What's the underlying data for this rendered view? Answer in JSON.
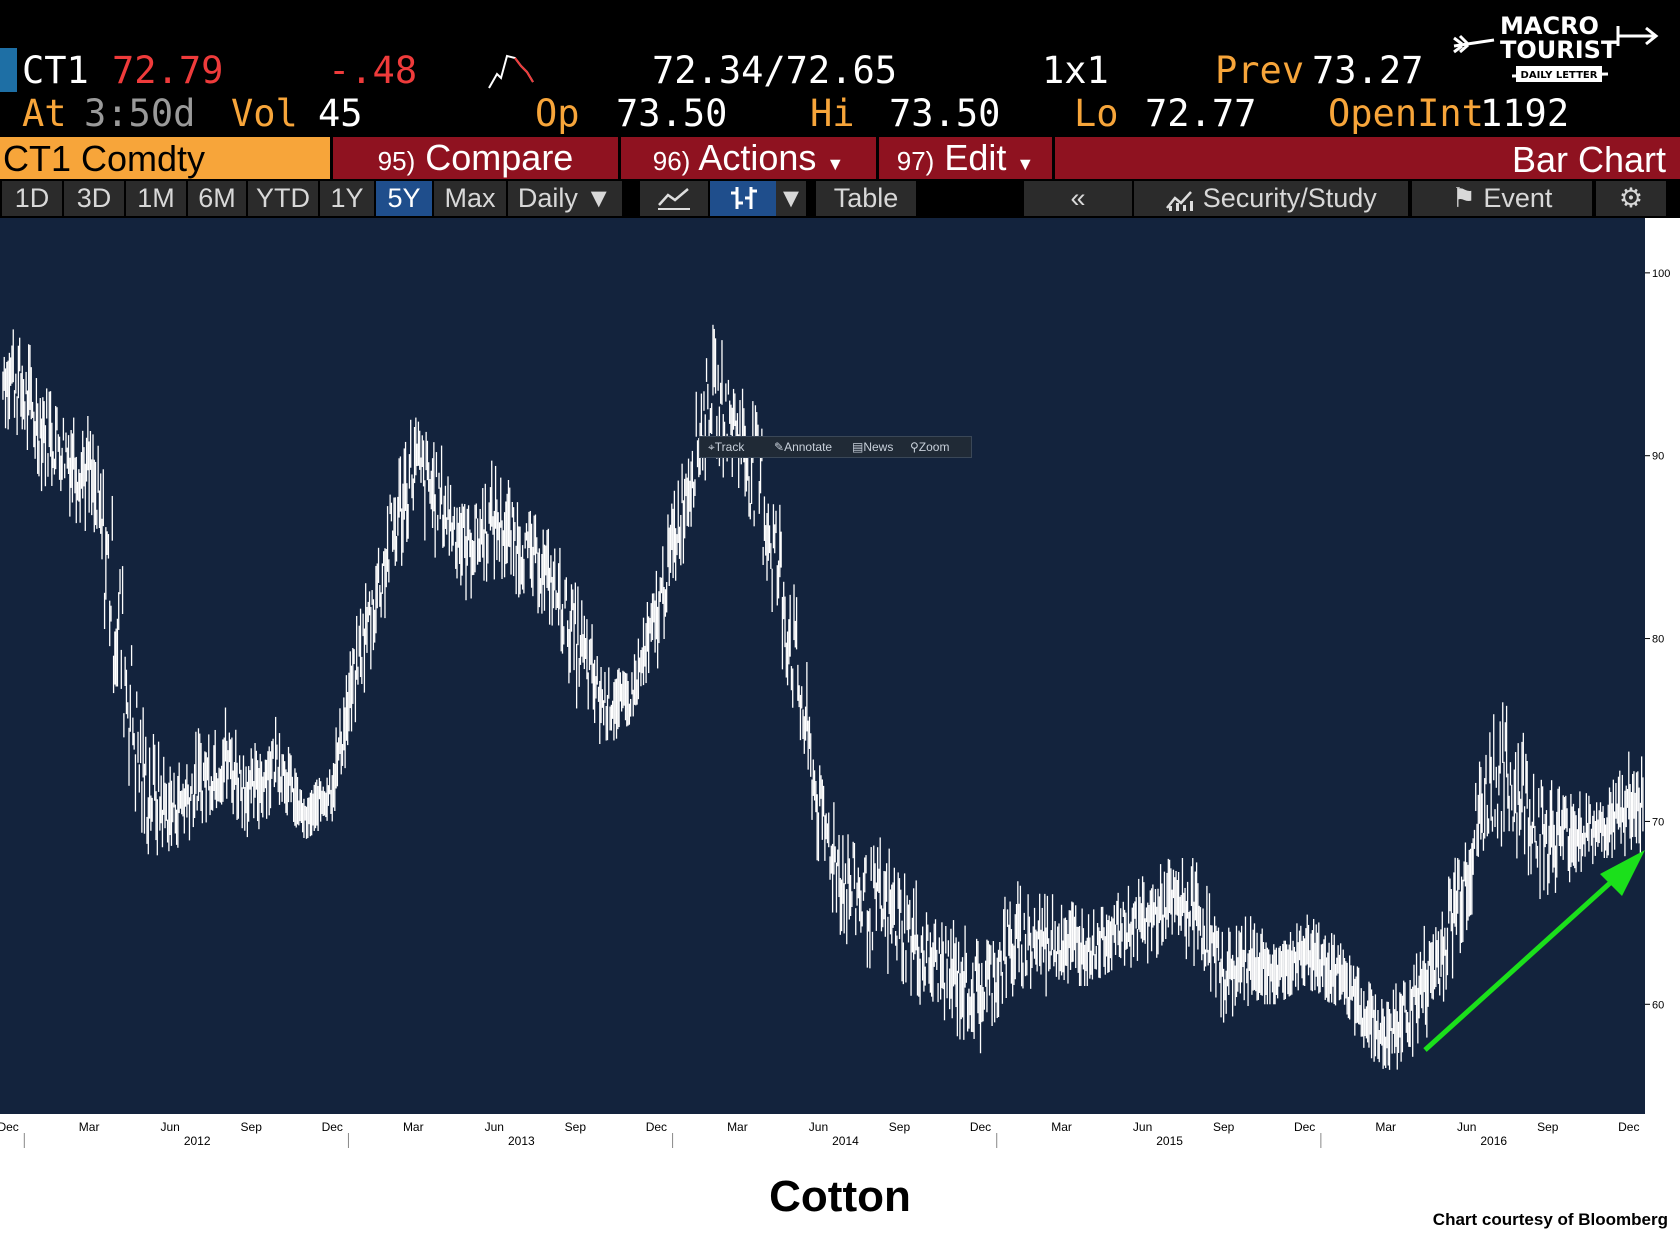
{
  "quote": {
    "ticker": "CT1",
    "last": "72.79",
    "change": "-.48",
    "bid_ask": "72.34/72.65",
    "size": "1x1",
    "prev_label": "Prev",
    "prev_value": "73.27",
    "at_label": "At",
    "time": "3:50d",
    "vol_label": "Vol",
    "vol_value": "45",
    "op_label": "Op",
    "op_value": "73.50",
    "hi_label": "Hi",
    "hi_value": "73.50",
    "lo_label": "Lo",
    "lo_value": "72.77",
    "openint_label": "OpenInt",
    "openint_value": "1192"
  },
  "logo": {
    "line1": "MACRO",
    "line2": "TOURIST",
    "line3": "DAILY LETTER"
  },
  "actionbar": {
    "security": "CT1 Comdty",
    "compare_num": "95)",
    "compare": "Compare",
    "actions_num": "96)",
    "actions": "Actions",
    "edit_num": "97)",
    "edit": "Edit",
    "chart_type": "Bar Chart"
  },
  "toolbar": {
    "ranges": [
      "1D",
      "3D",
      "1M",
      "6M",
      "YTD",
      "1Y",
      "5Y",
      "Max"
    ],
    "selected_range": "5Y",
    "frequency": "Daily",
    "table": "Table",
    "security_study": "Security/Study",
    "event": "Event"
  },
  "mini_toolbar": {
    "track": "Track",
    "annotate": "Annotate",
    "news": "News",
    "zoom": "Zoom"
  },
  "colors": {
    "background": "#13233d",
    "bars": "#ffffff",
    "arrow": "#1be01b",
    "amber": "#f7a53a",
    "red": "#ef3b3b"
  },
  "chart_data": {
    "type": "bar",
    "title": "Cotton",
    "credit": "Chart courtesy of Bloomberg",
    "ylim": [
      54,
      103
    ],
    "y_ticks": [
      60,
      70,
      80,
      90,
      100
    ],
    "grid": false,
    "x_range": [
      "2011-11",
      "2016-12"
    ],
    "x_month_labels": [
      {
        "label": "Dec",
        "date": "2011-12"
      },
      {
        "label": "Mar",
        "date": "2012-03"
      },
      {
        "label": "Jun",
        "date": "2012-06"
      },
      {
        "label": "Sep",
        "date": "2012-09"
      },
      {
        "label": "Dec",
        "date": "2012-12"
      },
      {
        "label": "Mar",
        "date": "2013-03"
      },
      {
        "label": "Jun",
        "date": "2013-06"
      },
      {
        "label": "Sep",
        "date": "2013-09"
      },
      {
        "label": "Dec",
        "date": "2013-12"
      },
      {
        "label": "Mar",
        "date": "2014-03"
      },
      {
        "label": "Jun",
        "date": "2014-06"
      },
      {
        "label": "Sep",
        "date": "2014-09"
      },
      {
        "label": "Dec",
        "date": "2014-12"
      },
      {
        "label": "Mar",
        "date": "2015-03"
      },
      {
        "label": "Jun",
        "date": "2015-06"
      },
      {
        "label": "Sep",
        "date": "2015-09"
      },
      {
        "label": "Dec",
        "date": "2015-12"
      },
      {
        "label": "Mar",
        "date": "2016-03"
      },
      {
        "label": "Jun",
        "date": "2016-06"
      },
      {
        "label": "Sep",
        "date": "2016-09"
      },
      {
        "label": "Dec",
        "date": "2016-12"
      }
    ],
    "x_year_labels": [
      {
        "label": "2012",
        "date": "2012-07"
      },
      {
        "label": "2013",
        "date": "2013-07"
      },
      {
        "label": "2014",
        "date": "2014-07"
      },
      {
        "label": "2015",
        "date": "2015-07"
      },
      {
        "label": "2016",
        "date": "2016-07"
      }
    ],
    "series": [
      {
        "values_note": "",
        "x": [
          "2011-11",
          "2011-12",
          "2012-01",
          "2012-02",
          "2012-03",
          "2012-04",
          "2012-05",
          "2012-06",
          "2012-07",
          "2012-08",
          "2012-09",
          "2012-10",
          "2012-11",
          "2012-12",
          "2013-01",
          "2013-02",
          "2013-03",
          "2013-04",
          "2013-05",
          "2013-06",
          "2013-07",
          "2013-08",
          "2013-09",
          "2013-10",
          "2013-11",
          "2013-12",
          "2014-01",
          "2014-02",
          "2014-03",
          "2014-04",
          "2014-05",
          "2014-06",
          "2014-07",
          "2014-08",
          "2014-09",
          "2014-10",
          "2014-11",
          "2014-12",
          "2015-01",
          "2015-02",
          "2015-03",
          "2015-04",
          "2015-05",
          "2015-06",
          "2015-07",
          "2015-08",
          "2015-09",
          "2015-10",
          "2015-11",
          "2015-12",
          "2016-01",
          "2016-02",
          "2016-03",
          "2016-04",
          "2016-05",
          "2016-06",
          "2016-07",
          "2016-08",
          "2016-09",
          "2016-10",
          "2016-11",
          "2016-12"
        ],
        "high": [
          94,
          99,
          96,
          94,
          93,
          91,
          78,
          73,
          75,
          77,
          74,
          76,
          71,
          74,
          82,
          89,
          94,
          91,
          88,
          90,
          88,
          86,
          84,
          79,
          78,
          84,
          91,
          98,
          95,
          95,
          86,
          74,
          71,
          70,
          69,
          66,
          65,
          64,
          67,
          67,
          66,
          65,
          66,
          67,
          68,
          68,
          64,
          65,
          63,
          65,
          64,
          62,
          60,
          63,
          66,
          72,
          78,
          77,
          73,
          72,
          71,
          74
        ],
        "low": [
          86,
          91,
          88,
          87,
          85,
          72,
          66,
          68,
          69,
          70,
          69,
          71,
          69,
          70,
          76,
          80,
          85,
          84,
          82,
          83,
          82,
          81,
          76,
          74,
          75,
          78,
          84,
          89,
          88,
          80,
          74,
          67,
          62,
          61,
          60,
          59,
          58,
          57,
          59,
          60,
          61,
          61,
          62,
          62,
          63,
          62,
          59,
          60,
          60,
          61,
          60,
          58,
          56,
          57,
          59,
          63,
          67,
          66,
          65,
          67,
          68,
          68
        ]
      }
    ]
  }
}
